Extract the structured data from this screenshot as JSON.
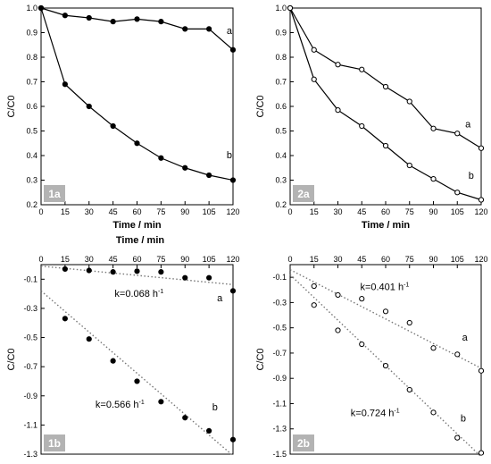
{
  "chart_data": [
    {
      "id": "1a",
      "type": "line",
      "panel_label": "1a",
      "xlabel": "Time / min",
      "ylabel": "C/C0",
      "xaxis_position": "bottom",
      "xlim": [
        0,
        120
      ],
      "ylim": [
        0.2,
        1.0
      ],
      "xticks": [
        0,
        15,
        30,
        45,
        60,
        75,
        90,
        105,
        120
      ],
      "yticks": [
        0.2,
        0.3,
        0.4,
        0.5,
        0.6,
        0.7,
        0.8,
        0.9,
        1.0
      ],
      "ytick_labels": [
        "0.2",
        "0.3",
        "0.4",
        "0.5",
        "0.6",
        "0.7",
        "0.8",
        "0.9",
        "1.0"
      ],
      "marker": "filled",
      "panel_label_corner": "bottom-left",
      "series": [
        {
          "name": "a",
          "x": [
            0,
            15,
            30,
            45,
            60,
            75,
            90,
            105,
            120
          ],
          "y": [
            1.0,
            0.97,
            0.96,
            0.945,
            0.955,
            0.945,
            0.915,
            0.915,
            0.83
          ]
        },
        {
          "name": "b",
          "x": [
            0,
            15,
            30,
            45,
            60,
            75,
            90,
            105,
            120
          ],
          "y": [
            1.0,
            0.69,
            0.6,
            0.52,
            0.45,
            0.39,
            0.35,
            0.32,
            0.3
          ]
        }
      ],
      "annotations": [
        {
          "text": "a",
          "x": 116,
          "y": 0.895
        },
        {
          "text": "b",
          "x": 116,
          "y": 0.39
        }
      ]
    },
    {
      "id": "2a",
      "type": "line",
      "panel_label": "2a",
      "xlabel": "Time / min",
      "ylabel": "C/C0",
      "xaxis_position": "bottom",
      "xlim": [
        0,
        120
      ],
      "ylim": [
        0.2,
        1.0
      ],
      "xticks": [
        0,
        15,
        30,
        45,
        60,
        75,
        90,
        105,
        120
      ],
      "yticks": [
        0.2,
        0.3,
        0.4,
        0.5,
        0.6,
        0.7,
        0.8,
        0.9,
        1.0
      ],
      "ytick_labels": [
        "0.2",
        "0.3",
        "0.4",
        "0.5",
        "0.6",
        "0.7",
        "0.8",
        "0.9",
        "1.0"
      ],
      "marker": "open",
      "panel_label_corner": "bottom-left",
      "series": [
        {
          "name": "a",
          "x": [
            0,
            15,
            30,
            45,
            60,
            75,
            90,
            105,
            120
          ],
          "y": [
            1.0,
            0.83,
            0.77,
            0.75,
            0.68,
            0.62,
            0.51,
            0.49,
            0.43
          ]
        },
        {
          "name": "b",
          "x": [
            0,
            15,
            30,
            45,
            60,
            75,
            90,
            105,
            120
          ],
          "y": [
            1.0,
            0.71,
            0.585,
            0.52,
            0.44,
            0.36,
            0.305,
            0.25,
            0.22
          ]
        }
      ],
      "annotations": [
        {
          "text": "a",
          "x": 110,
          "y": 0.515
        },
        {
          "text": "b",
          "x": 112,
          "y": 0.305
        }
      ]
    },
    {
      "id": "1b",
      "type": "scatter",
      "panel_label": "1b",
      "xlabel": "Time / min",
      "ylabel": "C/C0",
      "xaxis_position": "top",
      "xlim": [
        0,
        120
      ],
      "ylim": [
        -1.3,
        0
      ],
      "xticks": [
        0,
        15,
        30,
        45,
        60,
        75,
        90,
        105,
        120
      ],
      "yticks": [
        -0.1,
        -0.3,
        -0.5,
        -0.7,
        -0.9,
        -1.1,
        -1.3
      ],
      "ytick_labels": [
        "-0.1",
        "-0.3",
        "-0.5",
        "-0.7",
        "-0.9",
        "-1.1",
        "-1.3"
      ],
      "marker": "filled",
      "panel_label_corner": "bottom-left",
      "series": [
        {
          "name": "a",
          "x": [
            15,
            30,
            45,
            60,
            75,
            90,
            105,
            120
          ],
          "y": [
            -0.03,
            -0.04,
            -0.05,
            -0.045,
            -0.05,
            -0.09,
            -0.09,
            -0.18
          ]
        },
        {
          "name": "b",
          "x": [
            15,
            30,
            45,
            60,
            75,
            90,
            105,
            120
          ],
          "y": [
            -0.37,
            -0.51,
            -0.66,
            -0.8,
            -0.94,
            -1.05,
            -1.14,
            -1.2
          ]
        }
      ],
      "fits": [
        {
          "series": "a",
          "x": [
            0,
            120
          ],
          "y": [
            -0.01,
            -0.137
          ]
        },
        {
          "series": "b",
          "x": [
            0,
            120
          ],
          "y": [
            -0.18,
            -1.31
          ]
        }
      ],
      "annotations": [
        {
          "text": "k=0.068 h",
          "sup": "-1",
          "x": 46,
          "y": -0.22
        },
        {
          "text": "a",
          "x": 110,
          "y": -0.25
        },
        {
          "text": "k=0.566 h",
          "sup": "-1",
          "x": 34,
          "y": -0.98
        },
        {
          "text": "b",
          "x": 107,
          "y": -1.0
        }
      ]
    },
    {
      "id": "2b",
      "type": "scatter",
      "panel_label": "2b",
      "xlabel": "",
      "ylabel": "C/C0",
      "xaxis_position": "top",
      "xlim": [
        0,
        120
      ],
      "ylim": [
        -1.5,
        0
      ],
      "xticks": [
        0,
        15,
        30,
        45,
        60,
        75,
        90,
        105,
        120
      ],
      "yticks": [
        -0.1,
        -0.3,
        -0.5,
        -0.7,
        -0.9,
        -1.1,
        -1.3,
        -1.5
      ],
      "ytick_labels": [
        "-0.1",
        "-0.3",
        "-0.5",
        "-0.7",
        "-0.9",
        "-1.1",
        "-1.3",
        "-1.5"
      ],
      "marker": "open",
      "panel_label_corner": "bottom-left",
      "series": [
        {
          "name": "a",
          "x": [
            15,
            30,
            45,
            60,
            75,
            90,
            105,
            120
          ],
          "y": [
            -0.17,
            -0.24,
            -0.27,
            -0.37,
            -0.46,
            -0.66,
            -0.71,
            -0.84
          ]
        },
        {
          "name": "b",
          "x": [
            15,
            30,
            45,
            60,
            75,
            90,
            105,
            120
          ],
          "y": [
            -0.32,
            -0.52,
            -0.63,
            -0.8,
            -0.99,
            -1.17,
            -1.37,
            -1.49
          ]
        }
      ],
      "fits": [
        {
          "series": "a",
          "x": [
            0,
            120
          ],
          "y": [
            -0.04,
            -0.82
          ]
        },
        {
          "series": "b",
          "x": [
            0,
            120
          ],
          "y": [
            -0.08,
            -1.52
          ]
        }
      ],
      "annotations": [
        {
          "text": "k=0.401 h",
          "sup": "-1",
          "x": 44,
          "y": -0.2
        },
        {
          "text": "a",
          "x": 108,
          "y": -0.6
        },
        {
          "text": "k=0.724 h",
          "sup": "-1",
          "x": 38,
          "y": -1.2
        },
        {
          "text": "b",
          "x": 107,
          "y": -1.24
        }
      ]
    }
  ],
  "shared": {
    "top_axis_label": "Time / min"
  }
}
